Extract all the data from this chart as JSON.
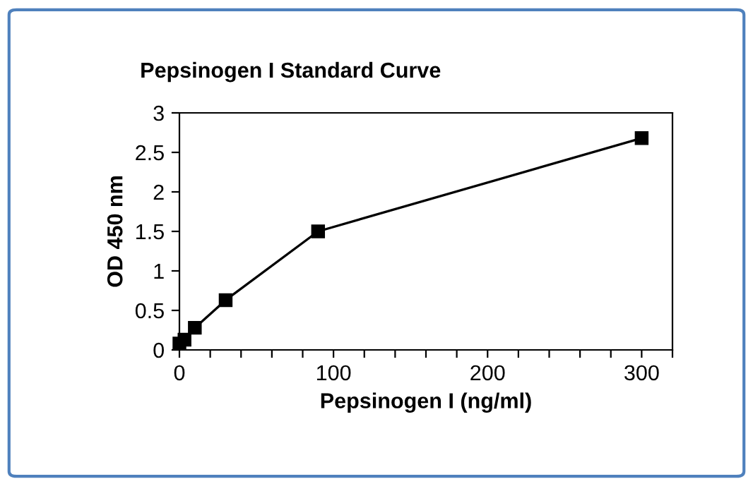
{
  "chart_data": {
    "type": "line",
    "title": "Pepsinogen I Standard Curve",
    "xlabel": "Pepsinogen I (ng/ml)",
    "ylabel": "OD 450 nm",
    "x": [
      0,
      3.3,
      10,
      30,
      90,
      300
    ],
    "series": [
      {
        "color": "#000000",
        "values": [
          0.08,
          0.13,
          0.28,
          0.63,
          1.5,
          2.68
        ]
      }
    ],
    "marker": "square",
    "line_style": "solid",
    "xlim": [
      0,
      320
    ],
    "ylim": [
      0,
      3
    ],
    "xticks": [
      0,
      {
        "value": 20,
        "label": null
      },
      {
        "value": 40,
        "label": null
      },
      {
        "value": 60,
        "label": null
      },
      {
        "value": 80,
        "label": null
      },
      100,
      {
        "value": 120,
        "label": null
      },
      {
        "value": 140,
        "label": null
      },
      {
        "value": 160,
        "label": null
      },
      {
        "value": 180,
        "label": null
      },
      200,
      {
        "value": 220,
        "label": null
      },
      {
        "value": 240,
        "label": null
      },
      {
        "value": 260,
        "label": null
      },
      {
        "value": 280,
        "label": null
      },
      300,
      {
        "value": 320,
        "label": null
      }
    ],
    "yticks": [
      0,
      0.5,
      1,
      1.5,
      2,
      2.5,
      3
    ],
    "grid": false,
    "legend": false
  }
}
